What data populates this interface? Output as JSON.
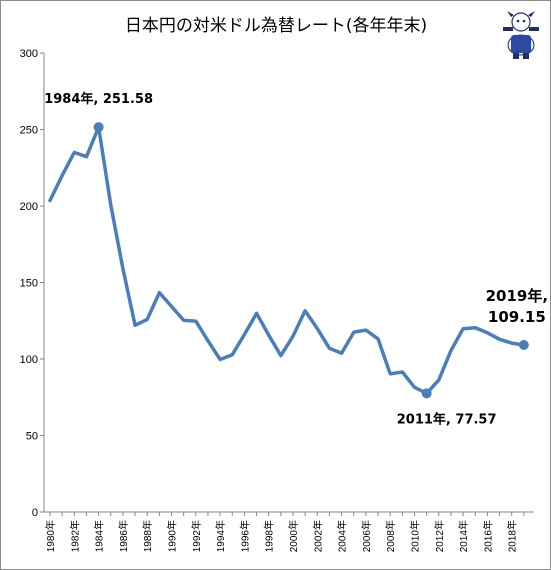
{
  "chart_data": {
    "type": "line",
    "title": "日本円の対米ドル為替レート(各年年末)",
    "xlabel": "",
    "ylabel": "",
    "ylim": [
      0,
      300
    ],
    "yticks": [
      0,
      50,
      100,
      150,
      200,
      250,
      300
    ],
    "grid": false,
    "legend": "none",
    "line_color": "#4a7ebb",
    "xtick_labels": [
      "1980年",
      "1982年",
      "1984年",
      "1986年",
      "1988年",
      "1990年",
      "1992年",
      "1994年",
      "1996年",
      "1998年",
      "2000年",
      "2002年",
      "2004年",
      "2006年",
      "2008年",
      "2010年",
      "2012年",
      "2014年",
      "2016年",
      "2018年"
    ],
    "x": [
      1980,
      1981,
      1982,
      1983,
      1984,
      1985,
      1986,
      1987,
      1988,
      1989,
      1990,
      1991,
      1992,
      1993,
      1994,
      1995,
      1996,
      1997,
      1998,
      1999,
      2000,
      2001,
      2002,
      2003,
      2004,
      2005,
      2006,
      2007,
      2008,
      2009,
      2010,
      2011,
      2012,
      2013,
      2014,
      2015,
      2016,
      2017,
      2018,
      2019
    ],
    "series": [
      {
        "values": [
          203.6,
          219.9,
          235.0,
          232.2,
          251.58,
          200.6,
          159.1,
          122.0,
          125.9,
          143.4,
          134.4,
          125.2,
          124.8,
          111.9,
          99.7,
          102.8,
          116.0,
          129.9,
          115.6,
          102.2,
          114.9,
          131.5,
          119.9,
          106.97,
          103.8,
          117.5,
          118.9,
          113.1,
          90.3,
          91.5,
          81.5,
          77.57,
          86.3,
          105.4,
          119.8,
          120.4,
          117.1,
          112.9,
          110.4,
          109.15
        ]
      }
    ],
    "annotations": [
      {
        "label": "1984年, 251.58",
        "x": 1984,
        "y": 251.58
      },
      {
        "label": "2011年, 77.57",
        "x": 2011,
        "y": 77.57
      },
      {
        "label_lines": [
          "2019年,",
          "109.15"
        ],
        "x": 2019,
        "y": 109.15
      }
    ]
  },
  "icon": "mascot-logo-icon"
}
